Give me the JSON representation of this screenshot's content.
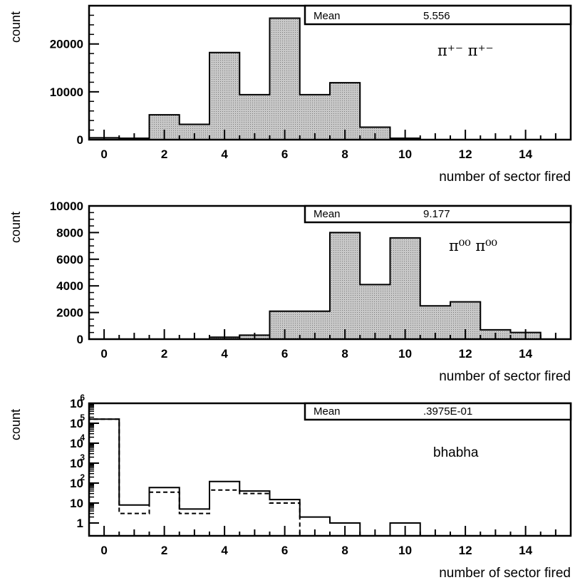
{
  "chart_data": [
    {
      "type": "histogram",
      "ylabel": "count",
      "xlabel": "number of sector fired",
      "xlim": [
        -0.5,
        15.5
      ],
      "ylim": [
        0,
        28000
      ],
      "yscale": "linear",
      "xticks": [
        "0",
        "2",
        "4",
        "6",
        "8",
        "10",
        "12",
        "14"
      ],
      "yticks": [
        "0",
        "10000",
        "20000"
      ],
      "stat_label": "Mean",
      "stat_value": "5.556",
      "annotation": "π⁺⁻ π⁺⁻",
      "fill": "#bdbdbd",
      "series": [
        {
          "bins": [
            0,
            1,
            2,
            3,
            4,
            5,
            6,
            7,
            8,
            9,
            10,
            11,
            12,
            13,
            14,
            15
          ],
          "values": [
            400,
            300,
            5200,
            3200,
            18200,
            9400,
            25400,
            9400,
            11900,
            2600,
            300,
            0,
            0,
            0,
            0,
            0
          ],
          "style": "filled"
        }
      ]
    },
    {
      "type": "histogram",
      "ylabel": "count",
      "xlabel": "number of sector fired",
      "xlim": [
        -0.5,
        15.5
      ],
      "ylim": [
        0,
        10000
      ],
      "yscale": "linear",
      "xticks": [
        "0",
        "2",
        "4",
        "6",
        "8",
        "10",
        "12",
        "14"
      ],
      "yticks": [
        "0",
        "2000",
        "4000",
        "6000",
        "8000",
        "10000"
      ],
      "stat_label": "Mean",
      "stat_value": "9.177",
      "annotation": "π⁰⁰ π⁰⁰",
      "fill": "#bdbdbd",
      "series": [
        {
          "bins": [
            0,
            1,
            2,
            3,
            4,
            5,
            6,
            7,
            8,
            9,
            10,
            11,
            12,
            13,
            14,
            15
          ],
          "values": [
            0,
            0,
            0,
            0,
            150,
            300,
            2100,
            2100,
            8000,
            4100,
            7600,
            2500,
            2800,
            700,
            500,
            0
          ],
          "style": "filled"
        }
      ]
    },
    {
      "type": "histogram",
      "ylabel": "count",
      "xlabel": "number of sector fired",
      "xlim": [
        -0.5,
        15.5
      ],
      "ylim": [
        1,
        1000000
      ],
      "yscale": "log",
      "xticks": [
        "0",
        "2",
        "4",
        "6",
        "8",
        "10",
        "12",
        "14"
      ],
      "yticks": [
        {
          "base": "1",
          "exp": ""
        },
        {
          "base": "10",
          "exp": ""
        },
        {
          "base": "10",
          "exp": "2"
        },
        {
          "base": "10",
          "exp": "3"
        },
        {
          "base": "10",
          "exp": "4"
        },
        {
          "base": "10",
          "exp": "5"
        },
        {
          "base": "10",
          "exp": "6"
        }
      ],
      "stat_label": "Mean",
      "stat_value": ".3975E-01",
      "annotation": "bhabha",
      "series": [
        {
          "bins": [
            0,
            1,
            2,
            3,
            4,
            5,
            6,
            7,
            8,
            9,
            10,
            11,
            12,
            13,
            14,
            15
          ],
          "values": [
            160000,
            8,
            60,
            5,
            120,
            40,
            15,
            2,
            1,
            0,
            1,
            0,
            0,
            0,
            0,
            0
          ],
          "style": "solid"
        },
        {
          "bins": [
            0,
            1,
            2,
            3,
            4,
            5,
            6,
            7,
            8,
            9,
            10,
            11,
            12,
            13,
            14,
            15
          ],
          "values": [
            160000,
            3,
            35,
            3,
            45,
            30,
            10,
            0,
            0,
            0,
            0,
            0,
            0,
            0,
            0,
            0
          ],
          "style": "dashed"
        }
      ]
    }
  ]
}
